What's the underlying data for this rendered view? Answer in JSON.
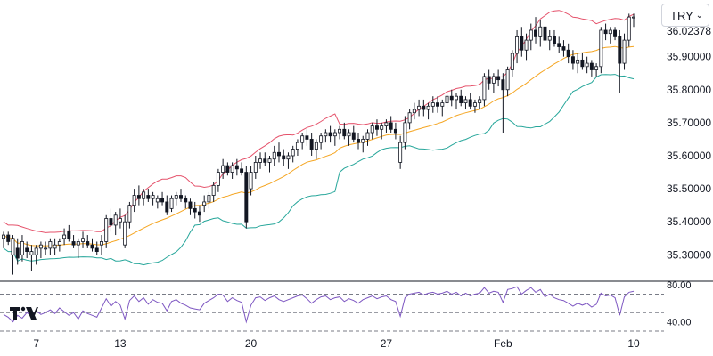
{
  "currency_selector": {
    "value": "TRY",
    "chevron_icon": "chevron-down-icon"
  },
  "logo": {
    "icon": "tradingview-logo-icon"
  },
  "current_price_label": "36.02378",
  "colors": {
    "up_candle": "#ffffff",
    "down_candle": "#131722",
    "candle_outline": "#131722",
    "bb_upper": "#e5526b",
    "bb_basis": "#f5a623",
    "bb_lower": "#26a69a",
    "rsi_line": "#7e57c2",
    "rsi_band_lines": "#787b86",
    "separator": "#131722"
  },
  "chart_data": [
    {
      "type": "candlestick",
      "title": "",
      "indicators": [
        "Bollinger Bands"
      ],
      "y_tick_labels": [
        "35.30000",
        "35.40000",
        "35.50000",
        "35.60000",
        "35.70000",
        "35.80000",
        "35.90000"
      ],
      "ylim": [
        35.22,
        36.05
      ],
      "x_tick_labels": [
        {
          "label": "7",
          "index": 7
        },
        {
          "label": "13",
          "index": 25
        },
        {
          "label": "20",
          "index": 53
        },
        {
          "label": "27",
          "index": 82
        },
        {
          "label": "Feb",
          "index": 107
        },
        {
          "label": "10",
          "index": 135
        }
      ],
      "grid": false,
      "ohlc": [
        [
          35.35,
          35.37,
          35.32,
          35.36
        ],
        [
          35.36,
          35.37,
          35.33,
          35.34
        ],
        [
          35.3,
          35.36,
          35.24,
          35.35
        ],
        [
          35.32,
          35.35,
          35.27,
          35.29
        ],
        [
          35.3,
          35.36,
          35.28,
          35.34
        ],
        [
          35.32,
          35.34,
          35.29,
          35.31
        ],
        [
          35.3,
          35.33,
          35.25,
          35.31
        ],
        [
          35.3,
          35.33,
          35.27,
          35.32
        ],
        [
          35.32,
          35.34,
          35.29,
          35.33
        ],
        [
          35.32,
          35.34,
          35.3,
          35.32
        ],
        [
          35.32,
          35.35,
          35.3,
          35.34
        ],
        [
          35.32,
          35.35,
          35.3,
          35.33
        ],
        [
          35.33,
          35.35,
          35.31,
          35.34
        ],
        [
          35.35,
          35.38,
          35.33,
          35.36
        ],
        [
          35.37,
          35.39,
          35.34,
          35.35
        ],
        [
          35.34,
          35.36,
          35.32,
          35.33
        ],
        [
          35.33,
          35.35,
          35.29,
          35.34
        ],
        [
          35.34,
          35.37,
          35.32,
          35.35
        ],
        [
          35.34,
          35.36,
          35.32,
          35.33
        ],
        [
          35.33,
          35.35,
          35.31,
          35.32
        ],
        [
          35.32,
          35.34,
          35.3,
          35.31
        ],
        [
          35.33,
          35.36,
          35.3,
          35.34
        ],
        [
          35.34,
          35.42,
          35.32,
          35.41
        ],
        [
          35.41,
          35.44,
          35.37,
          35.39
        ],
        [
          35.39,
          35.43,
          35.36,
          35.42
        ],
        [
          35.4,
          35.44,
          35.38,
          35.41
        ],
        [
          35.33,
          35.42,
          35.32,
          35.4
        ],
        [
          35.4,
          35.46,
          35.38,
          35.45
        ],
        [
          35.45,
          35.5,
          35.43,
          35.48
        ],
        [
          35.48,
          35.51,
          35.45,
          35.47
        ],
        [
          35.47,
          35.5,
          35.45,
          35.49
        ],
        [
          35.48,
          35.5,
          35.46,
          35.47
        ],
        [
          35.47,
          35.49,
          35.45,
          35.48
        ],
        [
          35.46,
          35.48,
          35.44,
          35.47
        ],
        [
          35.47,
          35.49,
          35.45,
          35.46
        ],
        [
          35.46,
          35.48,
          35.42,
          35.43
        ],
        [
          35.44,
          35.48,
          35.43,
          35.47
        ],
        [
          35.47,
          35.49,
          35.45,
          35.48
        ],
        [
          35.48,
          35.5,
          35.46,
          35.47
        ],
        [
          35.47,
          35.48,
          35.44,
          35.46
        ],
        [
          35.46,
          35.47,
          35.42,
          35.44
        ],
        [
          35.44,
          35.46,
          35.41,
          35.43
        ],
        [
          35.43,
          35.45,
          35.4,
          35.42
        ],
        [
          35.45,
          35.48,
          35.43,
          35.46
        ],
        [
          35.46,
          35.49,
          35.44,
          35.48
        ],
        [
          35.48,
          35.52,
          35.46,
          35.51
        ],
        [
          35.51,
          35.56,
          35.49,
          35.55
        ],
        [
          35.55,
          35.59,
          35.53,
          35.57
        ],
        [
          35.57,
          35.58,
          35.54,
          35.55
        ],
        [
          35.55,
          35.58,
          35.53,
          35.57
        ],
        [
          35.57,
          35.59,
          35.54,
          35.56
        ],
        [
          35.56,
          35.58,
          35.54,
          35.55
        ],
        [
          35.55,
          35.57,
          35.38,
          35.4
        ],
        [
          35.5,
          35.57,
          35.48,
          35.55
        ],
        [
          35.55,
          35.6,
          35.53,
          35.58
        ],
        [
          35.58,
          35.61,
          35.56,
          35.59
        ],
        [
          35.59,
          35.61,
          35.57,
          35.58
        ],
        [
          35.58,
          35.6,
          35.55,
          35.59
        ],
        [
          35.59,
          35.63,
          35.57,
          35.61
        ],
        [
          35.61,
          35.64,
          35.58,
          35.6
        ],
        [
          35.6,
          35.62,
          35.57,
          35.59
        ],
        [
          35.59,
          35.61,
          35.56,
          35.6
        ],
        [
          35.6,
          35.63,
          35.58,
          35.62
        ],
        [
          35.62,
          35.65,
          35.6,
          35.64
        ],
        [
          35.64,
          35.67,
          35.62,
          35.66
        ],
        [
          35.66,
          35.68,
          35.63,
          35.65
        ],
        [
          35.65,
          35.67,
          35.6,
          35.62
        ],
        [
          35.62,
          35.65,
          35.59,
          35.64
        ],
        [
          35.64,
          35.67,
          35.62,
          35.66
        ],
        [
          35.66,
          35.68,
          35.64,
          35.67
        ],
        [
          35.67,
          35.69,
          35.64,
          35.66
        ],
        [
          35.66,
          35.68,
          35.63,
          35.67
        ],
        [
          35.67,
          35.69,
          35.65,
          35.68
        ],
        [
          35.68,
          35.7,
          35.65,
          35.66
        ],
        [
          35.66,
          35.68,
          35.63,
          35.67
        ],
        [
          35.67,
          35.69,
          35.64,
          35.65
        ],
        [
          35.65,
          35.67,
          35.62,
          35.64
        ],
        [
          35.64,
          35.66,
          35.61,
          35.65
        ],
        [
          35.65,
          35.68,
          35.63,
          35.67
        ],
        [
          35.67,
          35.7,
          35.65,
          35.69
        ],
        [
          35.69,
          35.71,
          35.66,
          35.68
        ],
        [
          35.68,
          35.7,
          35.65,
          35.69
        ],
        [
          35.69,
          35.71,
          35.67,
          35.7
        ],
        [
          35.7,
          35.72,
          35.67,
          35.68
        ],
        [
          35.68,
          35.7,
          35.65,
          35.67
        ],
        [
          35.58,
          35.66,
          35.56,
          35.64
        ],
        [
          35.64,
          35.72,
          35.62,
          35.7
        ],
        [
          35.7,
          35.74,
          35.68,
          35.73
        ],
        [
          35.73,
          35.76,
          35.71,
          35.74
        ],
        [
          35.74,
          35.77,
          35.72,
          35.75
        ],
        [
          35.75,
          35.77,
          35.72,
          35.74
        ],
        [
          35.74,
          35.76,
          35.71,
          35.75
        ],
        [
          35.75,
          35.78,
          35.73,
          35.76
        ],
        [
          35.76,
          35.78,
          35.73,
          35.75
        ],
        [
          35.75,
          35.77,
          35.72,
          35.76
        ],
        [
          35.76,
          35.79,
          35.74,
          35.78
        ],
        [
          35.78,
          35.8,
          35.75,
          35.77
        ],
        [
          35.77,
          35.79,
          35.74,
          35.78
        ],
        [
          35.78,
          35.8,
          35.75,
          35.76
        ],
        [
          35.76,
          35.78,
          35.74,
          35.77
        ],
        [
          35.77,
          35.79,
          35.74,
          35.75
        ],
        [
          35.75,
          35.77,
          35.73,
          35.76
        ],
        [
          35.76,
          35.78,
          35.74,
          35.77
        ],
        [
          35.77,
          35.85,
          35.75,
          35.84
        ],
        [
          35.84,
          35.86,
          35.8,
          35.82
        ],
        [
          35.82,
          35.85,
          35.79,
          35.84
        ],
        [
          35.84,
          35.86,
          35.81,
          35.83
        ],
        [
          35.83,
          35.85,
          35.67,
          35.8
        ],
        [
          35.8,
          35.87,
          35.78,
          35.86
        ],
        [
          35.86,
          35.92,
          35.84,
          35.91
        ],
        [
          35.91,
          35.98,
          35.88,
          35.96
        ],
        [
          35.96,
          35.99,
          35.9,
          35.92
        ],
        [
          35.92,
          35.97,
          35.89,
          35.95
        ],
        [
          35.95,
          36.0,
          35.92,
          35.98
        ],
        [
          35.98,
          36.02,
          35.94,
          35.96
        ],
        [
          35.96,
          36.01,
          35.93,
          35.99
        ],
        [
          35.99,
          36.01,
          35.94,
          35.95
        ],
        [
          35.95,
          35.98,
          35.92,
          35.96
        ],
        [
          35.96,
          35.98,
          35.93,
          35.94
        ],
        [
          35.94,
          35.96,
          35.91,
          35.93
        ],
        [
          35.93,
          35.95,
          35.9,
          35.92
        ],
        [
          35.92,
          35.94,
          35.88,
          35.9
        ],
        [
          35.9,
          35.92,
          35.86,
          35.88
        ],
        [
          35.88,
          35.91,
          35.85,
          35.89
        ],
        [
          35.89,
          35.91,
          35.86,
          35.87
        ],
        [
          35.87,
          35.9,
          35.85,
          35.88
        ],
        [
          35.88,
          35.89,
          35.84,
          35.86
        ],
        [
          35.86,
          35.88,
          35.84,
          35.87
        ],
        [
          35.87,
          35.99,
          35.85,
          35.98
        ],
        [
          35.98,
          36.0,
          35.95,
          35.97
        ],
        [
          35.97,
          35.99,
          35.94,
          35.98
        ],
        [
          35.98,
          35.99,
          35.95,
          35.96
        ],
        [
          35.96,
          35.98,
          35.79,
          35.88
        ],
        [
          35.88,
          35.97,
          35.86,
          35.95
        ],
        [
          35.95,
          36.03,
          35.93,
          36.02
        ],
        [
          36.02,
          36.03,
          35.99,
          36.02
        ]
      ]
    },
    {
      "type": "line",
      "title": "",
      "indicator": "RSI",
      "y_tick_labels": [
        "80.00",
        "40.00"
      ],
      "ylim": [
        30,
        82
      ],
      "band_levels": [
        70,
        50,
        30
      ],
      "values": [
        48,
        45,
        40,
        47,
        44,
        50,
        46,
        52,
        48,
        50,
        53,
        49,
        55,
        51,
        47,
        50,
        43,
        52,
        49,
        47,
        45,
        55,
        65,
        57,
        62,
        58,
        43,
        63,
        68,
        62,
        66,
        59,
        64,
        61,
        60,
        52,
        62,
        64,
        60,
        58,
        55,
        54,
        53,
        60,
        63,
        66,
        70,
        69,
        62,
        66,
        63,
        61,
        40,
        58,
        66,
        67,
        63,
        66,
        68,
        64,
        62,
        64,
        66,
        68,
        69,
        65,
        60,
        64,
        67,
        68,
        64,
        66,
        67,
        62,
        65,
        63,
        60,
        64,
        66,
        68,
        65,
        67,
        68,
        64,
        62,
        46,
        66,
        70,
        71,
        72,
        69,
        71,
        72,
        70,
        71,
        73,
        70,
        72,
        68,
        71,
        68,
        70,
        71,
        77,
        71,
        73,
        72,
        61,
        75,
        76,
        78,
        70,
        74,
        77,
        72,
        75,
        67,
        70,
        66,
        64,
        63,
        60,
        57,
        60,
        58,
        60,
        56,
        59,
        71,
        68,
        69,
        66,
        47,
        67,
        72,
        73
      ]
    }
  ]
}
